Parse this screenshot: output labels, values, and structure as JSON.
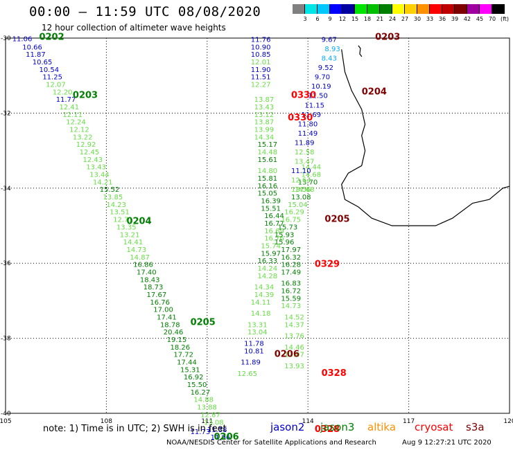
{
  "title": "00:00 – 11:59 UTC 08/08/2020",
  "subtitle": "12 hour collection of altimeter wave heights",
  "legend": {
    "colors": [
      "#808080",
      "#00e5e5",
      "#00c8ff",
      "#0000ff",
      "#0000a0",
      "#00e600",
      "#00c000",
      "#008000",
      "#ffff00",
      "#ffd000",
      "#ff9000",
      "#ff0000",
      "#c00000",
      "#800000",
      "#a000a0",
      "#ff00ff",
      "#000000"
    ],
    "labels": [
      "3",
      "6",
      "9",
      "12",
      "15",
      "18",
      "21",
      "24",
      "27",
      "30",
      "33",
      "36",
      "39",
      "42",
      "45",
      "70",
      "(ft)"
    ]
  },
  "axes": {
    "x_ticks": [
      "105",
      "108",
      "111",
      "114",
      "117",
      "120"
    ],
    "y_ticks": [
      "-30",
      "-32",
      "-34",
      "-36",
      "-38",
      "-40"
    ]
  },
  "note": "note: 1) Time is in UTC; 2) SWH is in feet",
  "satellites": [
    {
      "name": "jason2",
      "color": "#0000cc"
    },
    {
      "name": "jason3",
      "color": "#008000"
    },
    {
      "name": "altika",
      "color": "#ff9000"
    },
    {
      "name": "cryosat",
      "color": "#ff0000"
    },
    {
      "name": "s3a",
      "color": "#800000"
    }
  ],
  "credit": "NOAA/NESDIS Center for Satellite Applications and Research",
  "credit_time": "Aug  9 12:27:21 UTC 2020",
  "tracks": [
    {
      "time": "0202",
      "color": "#008000",
      "labels": [
        {
          "lon": 105.2,
          "lat": -30.08,
          "v": "11.06",
          "c": "#0000cc"
        },
        {
          "lon": 105.5,
          "lat": -30.3,
          "v": "10.66",
          "c": "#0000cc"
        },
        {
          "lon": 105.6,
          "lat": -30.5,
          "v": "11.87",
          "c": "#0000cc"
        },
        {
          "lon": 105.8,
          "lat": -30.7,
          "v": "10.65",
          "c": "#0000cc"
        },
        {
          "lon": 106.0,
          "lat": -30.9,
          "v": "10.54",
          "c": "#0000cc"
        },
        {
          "lon": 106.1,
          "lat": -31.1,
          "v": "11.25",
          "c": "#0000cc"
        },
        {
          "lon": 106.2,
          "lat": -31.3,
          "v": "12.07",
          "c": "#66dd44"
        },
        {
          "lon": 106.4,
          "lat": -31.5,
          "v": "12.20",
          "c": "#66dd44"
        },
        {
          "lon": 106.5,
          "lat": -31.7,
          "v": "11.77",
          "c": "#0000cc"
        },
        {
          "lon": 106.6,
          "lat": -31.9,
          "v": "12.41",
          "c": "#66dd44"
        },
        {
          "lon": 106.7,
          "lat": -32.1,
          "v": "12.11",
          "c": "#66dd44"
        },
        {
          "lon": 106.8,
          "lat": -32.3,
          "v": "12.24",
          "c": "#66dd44"
        },
        {
          "lon": 106.9,
          "lat": -32.5,
          "v": "12.12",
          "c": "#66dd44"
        },
        {
          "lon": 107.0,
          "lat": -32.7,
          "v": "13.22",
          "c": "#66dd44"
        },
        {
          "lon": 107.1,
          "lat": -32.9,
          "v": "12.92",
          "c": "#66dd44"
        },
        {
          "lon": 107.2,
          "lat": -33.1,
          "v": "12.45",
          "c": "#66dd44"
        },
        {
          "lon": 107.3,
          "lat": -33.3,
          "v": "12.43",
          "c": "#66dd44"
        },
        {
          "lon": 107.4,
          "lat": -33.5,
          "v": "13.43",
          "c": "#66dd44"
        },
        {
          "lon": 107.5,
          "lat": -33.7,
          "v": "13.44",
          "c": "#66dd44"
        },
        {
          "lon": 107.6,
          "lat": -33.9,
          "v": "14.21",
          "c": "#66dd44"
        },
        {
          "lon": 107.8,
          "lat": -34.1,
          "v": "15.52",
          "c": "#008000"
        },
        {
          "lon": 107.9,
          "lat": -34.3,
          "v": "13.85",
          "c": "#66dd44"
        },
        {
          "lon": 108.0,
          "lat": -34.5,
          "v": "14.23",
          "c": "#66dd44"
        },
        {
          "lon": 108.1,
          "lat": -34.7,
          "v": "13.51",
          "c": "#66dd44"
        },
        {
          "lon": 108.2,
          "lat": -34.9,
          "v": "12.71",
          "c": "#66dd44"
        },
        {
          "lon": 108.3,
          "lat": -35.1,
          "v": "13.35",
          "c": "#66dd44"
        },
        {
          "lon": 108.4,
          "lat": -35.3,
          "v": "13.21",
          "c": "#66dd44"
        },
        {
          "lon": 108.5,
          "lat": -35.5,
          "v": "14.41",
          "c": "#66dd44"
        },
        {
          "lon": 108.6,
          "lat": -35.7,
          "v": "14.73",
          "c": "#66dd44"
        },
        {
          "lon": 108.7,
          "lat": -35.9,
          "v": "14.87",
          "c": "#66dd44"
        },
        {
          "lon": 108.8,
          "lat": -36.1,
          "v": "16.86",
          "c": "#008000"
        },
        {
          "lon": 108.9,
          "lat": -36.3,
          "v": "17.40",
          "c": "#008000"
        },
        {
          "lon": 109.0,
          "lat": -36.5,
          "v": "18.43",
          "c": "#008000"
        },
        {
          "lon": 109.1,
          "lat": -36.7,
          "v": "18.73",
          "c": "#008000"
        },
        {
          "lon": 109.2,
          "lat": -36.9,
          "v": "17.67",
          "c": "#008000"
        },
        {
          "lon": 109.3,
          "lat": -37.1,
          "v": "16.76",
          "c": "#008000"
        },
        {
          "lon": 109.4,
          "lat": -37.3,
          "v": "17.00",
          "c": "#008000"
        },
        {
          "lon": 109.5,
          "lat": -37.5,
          "v": "17.41",
          "c": "#008000"
        },
        {
          "lon": 109.6,
          "lat": -37.7,
          "v": "18.78",
          "c": "#008000"
        },
        {
          "lon": 109.7,
          "lat": -37.9,
          "v": "20.46",
          "c": "#008000"
        },
        {
          "lon": 109.8,
          "lat": -38.1,
          "v": "19.15",
          "c": "#008000"
        },
        {
          "lon": 109.9,
          "lat": -38.3,
          "v": "18.26",
          "c": "#008000"
        },
        {
          "lon": 110.0,
          "lat": -38.5,
          "v": "17.72",
          "c": "#008000"
        },
        {
          "lon": 110.1,
          "lat": -38.7,
          "v": "17.44",
          "c": "#008000"
        },
        {
          "lon": 110.2,
          "lat": -38.9,
          "v": "15.31",
          "c": "#008000"
        },
        {
          "lon": 110.3,
          "lat": -39.1,
          "v": "16.92",
          "c": "#008000"
        },
        {
          "lon": 110.4,
          "lat": -39.3,
          "v": "15.50",
          "c": "#008000"
        },
        {
          "lon": 110.5,
          "lat": -39.5,
          "v": "16.27",
          "c": "#008000"
        },
        {
          "lon": 110.6,
          "lat": -39.7,
          "v": "14.88",
          "c": "#66dd44"
        },
        {
          "lon": 110.7,
          "lat": -39.9,
          "v": "13.88",
          "c": "#66dd44"
        },
        {
          "lon": 110.8,
          "lat": -40.1,
          "v": "12.87",
          "c": "#66dd44"
        },
        {
          "lon": 110.9,
          "lat": -40.3,
          "v": "13.08",
          "c": "#66dd44"
        },
        {
          "lon": 111.0,
          "lat": -40.5,
          "v": "11.38",
          "c": "#0000cc"
        },
        {
          "lon": 111.1,
          "lat": -40.7,
          "v": "11.96",
          "c": "#0000cc"
        }
      ]
    },
    {
      "time": "0330",
      "color": "#ff0000",
      "labels": [
        {
          "lon": 112.3,
          "lat": -30.1,
          "v": "11.76",
          "c": "#0000cc"
        },
        {
          "lon": 112.3,
          "lat": -30.3,
          "v": "10.90",
          "c": "#0000cc"
        },
        {
          "lon": 112.3,
          "lat": -30.5,
          "v": "10.85",
          "c": "#0000cc"
        },
        {
          "lon": 112.3,
          "lat": -30.7,
          "v": "12.01",
          "c": "#66dd44"
        },
        {
          "lon": 112.3,
          "lat": -30.9,
          "v": "11.90",
          "c": "#0000cc"
        },
        {
          "lon": 112.3,
          "lat": -31.1,
          "v": "11.51",
          "c": "#0000cc"
        },
        {
          "lon": 112.3,
          "lat": -31.3,
          "v": "12.27",
          "c": "#66dd44"
        },
        {
          "lon": 112.4,
          "lat": -31.7,
          "v": "13.87",
          "c": "#66dd44"
        },
        {
          "lon": 112.4,
          "lat": -31.9,
          "v": "13.43",
          "c": "#66dd44"
        },
        {
          "lon": 112.4,
          "lat": -32.1,
          "v": "13.12",
          "c": "#66dd44"
        },
        {
          "lon": 112.4,
          "lat": -32.3,
          "v": "13.87",
          "c": "#66dd44"
        },
        {
          "lon": 112.4,
          "lat": -32.5,
          "v": "13.99",
          "c": "#66dd44"
        },
        {
          "lon": 112.4,
          "lat": -32.7,
          "v": "14.34",
          "c": "#66dd44"
        },
        {
          "lon": 112.5,
          "lat": -32.9,
          "v": "15.17",
          "c": "#008000"
        },
        {
          "lon": 112.5,
          "lat": -33.1,
          "v": "14.48",
          "c": "#66dd44"
        },
        {
          "lon": 112.5,
          "lat": -33.3,
          "v": "15.61",
          "c": "#008000"
        },
        {
          "lon": 112.5,
          "lat": -33.6,
          "v": "14.80",
          "c": "#66dd44"
        },
        {
          "lon": 112.5,
          "lat": -33.8,
          "v": "15.81",
          "c": "#008000"
        },
        {
          "lon": 112.5,
          "lat": -34.0,
          "v": "16.16",
          "c": "#008000"
        },
        {
          "lon": 112.5,
          "lat": -34.2,
          "v": "15.05",
          "c": "#008000"
        },
        {
          "lon": 112.6,
          "lat": -34.4,
          "v": "16.39",
          "c": "#008000"
        },
        {
          "lon": 112.6,
          "lat": -34.6,
          "v": "15.51",
          "c": "#008000"
        },
        {
          "lon": 112.7,
          "lat": -34.8,
          "v": "16.44",
          "c": "#008000"
        },
        {
          "lon": 112.7,
          "lat": -35.0,
          "v": "16.77",
          "c": "#008000"
        },
        {
          "lon": 112.7,
          "lat": -35.2,
          "v": "16.69",
          "c": "#66dd44"
        },
        {
          "lon": 112.7,
          "lat": -35.4,
          "v": "16.76",
          "c": "#66dd44"
        },
        {
          "lon": 112.6,
          "lat": -35.6,
          "v": "15.74",
          "c": "#66dd44"
        },
        {
          "lon": 112.6,
          "lat": -35.8,
          "v": "15.97",
          "c": "#008000"
        },
        {
          "lon": 112.5,
          "lat": -36.0,
          "v": "16.33",
          "c": "#008000"
        },
        {
          "lon": 112.5,
          "lat": -36.2,
          "v": "14.24",
          "c": "#66dd44"
        },
        {
          "lon": 112.5,
          "lat": -36.4,
          "v": "14.28",
          "c": "#66dd44"
        },
        {
          "lon": 112.4,
          "lat": -36.7,
          "v": "14.34",
          "c": "#66dd44"
        },
        {
          "lon": 112.4,
          "lat": -36.9,
          "v": "14.39",
          "c": "#66dd44"
        },
        {
          "lon": 112.3,
          "lat": -37.1,
          "v": "14.11",
          "c": "#66dd44"
        },
        {
          "lon": 112.3,
          "lat": -37.4,
          "v": "14.18",
          "c": "#66dd44"
        },
        {
          "lon": 112.2,
          "lat": -37.7,
          "v": "13.31",
          "c": "#66dd44"
        },
        {
          "lon": 112.2,
          "lat": -37.9,
          "v": "13.04",
          "c": "#66dd44"
        },
        {
          "lon": 112.1,
          "lat": -38.2,
          "v": "11.78",
          "c": "#0000cc"
        },
        {
          "lon": 112.1,
          "lat": -38.4,
          "v": "10.81",
          "c": "#0000cc"
        },
        {
          "lon": 112.0,
          "lat": -38.7,
          "v": "11.89",
          "c": "#0000cc"
        },
        {
          "lon": 111.9,
          "lat": -39.0,
          "v": "12.65",
          "c": "#66dd44"
        }
      ]
    },
    {
      "time": "0329",
      "color": "#ff0000",
      "labels": [
        {
          "lon": 113.8,
          "lat": -33.5,
          "v": "14.44",
          "c": "#66dd44"
        },
        {
          "lon": 113.8,
          "lat": -33.7,
          "v": "14.68",
          "c": "#66dd44"
        },
        {
          "lon": 113.7,
          "lat": -33.9,
          "v": "13.70",
          "c": "#008000"
        },
        {
          "lon": 113.6,
          "lat": -34.1,
          "v": "14.68",
          "c": "#66dd44"
        },
        {
          "lon": 113.5,
          "lat": -34.3,
          "v": "13.08",
          "c": "#008000"
        },
        {
          "lon": 113.4,
          "lat": -34.5,
          "v": "15.04",
          "c": "#66dd44"
        },
        {
          "lon": 113.3,
          "lat": -34.7,
          "v": "16.29",
          "c": "#66dd44"
        },
        {
          "lon": 113.2,
          "lat": -34.9,
          "v": "16.75",
          "c": "#66dd44"
        },
        {
          "lon": 113.1,
          "lat": -35.1,
          "v": "15.73",
          "c": "#008000"
        },
        {
          "lon": 113.0,
          "lat": -35.3,
          "v": "15.93",
          "c": "#008000"
        },
        {
          "lon": 113.0,
          "lat": -35.5,
          "v": "15.96",
          "c": "#008000"
        },
        {
          "lon": 113.2,
          "lat": -35.7,
          "v": "17.97",
          "c": "#008000"
        },
        {
          "lon": 113.2,
          "lat": -35.9,
          "v": "16.32",
          "c": "#008000"
        },
        {
          "lon": 113.2,
          "lat": -36.1,
          "v": "16.28",
          "c": "#008000"
        },
        {
          "lon": 113.2,
          "lat": -36.3,
          "v": "17.49",
          "c": "#008000"
        },
        {
          "lon": 113.2,
          "lat": -36.6,
          "v": "16.83",
          "c": "#008000"
        },
        {
          "lon": 113.2,
          "lat": -36.8,
          "v": "16.72",
          "c": "#008000"
        },
        {
          "lon": 113.2,
          "lat": -37.0,
          "v": "15.59",
          "c": "#008000"
        },
        {
          "lon": 113.2,
          "lat": -37.2,
          "v": "14.73",
          "c": "#66dd44"
        },
        {
          "lon": 113.3,
          "lat": -37.5,
          "v": "14.52",
          "c": "#66dd44"
        },
        {
          "lon": 113.3,
          "lat": -37.7,
          "v": "14.37",
          "c": "#66dd44"
        },
        {
          "lon": 113.3,
          "lat": -38.0,
          "v": "13.76",
          "c": "#66dd44"
        },
        {
          "lon": 113.3,
          "lat": -38.3,
          "v": "14.46",
          "c": "#66dd44"
        },
        {
          "lon": 113.3,
          "lat": -38.5,
          "v": "13.07",
          "c": "#66dd44"
        },
        {
          "lon": 113.3,
          "lat": -38.8,
          "v": "13.93",
          "c": "#66dd44"
        }
      ]
    }
  ],
  "time_labels": [
    {
      "text": "0202",
      "lon": 106.0,
      "lat": -30.05,
      "c": "#008000"
    },
    {
      "text": "0203",
      "lon": 107.0,
      "lat": -31.6,
      "c": "#008000"
    },
    {
      "text": "0204",
      "lon": 108.6,
      "lat": -34.95,
      "c": "#008000"
    },
    {
      "text": "0205",
      "lon": 110.5,
      "lat": -37.65,
      "c": "#008000"
    },
    {
      "text": "0206",
      "lon": 111.2,
      "lat": -40.7,
      "c": "#008000"
    },
    {
      "text": "0330",
      "lon": 113.5,
      "lat": -31.6,
      "c": "#ff0000"
    },
    {
      "text": "0330",
      "lon": 113.4,
      "lat": -32.2,
      "c": "#ff0000"
    },
    {
      "text": "0329",
      "lon": 114.2,
      "lat": -36.1,
      "c": "#ff0000"
    },
    {
      "text": "0328",
      "lon": 114.4,
      "lat": -39.0,
      "c": "#ff0000"
    },
    {
      "text": "0328",
      "lon": 114.2,
      "lat": -40.5,
      "c": "#ff0000"
    },
    {
      "text": "0203",
      "lon": 116.0,
      "lat": -30.05,
      "c": "#800000"
    },
    {
      "text": "0204",
      "lon": 115.6,
      "lat": -31.5,
      "c": "#800000"
    },
    {
      "text": "0205",
      "lon": 114.5,
      "lat": -34.9,
      "c": "#800000"
    },
    {
      "text": "0206",
      "lon": 113.0,
      "lat": -38.5,
      "c": "#800000"
    }
  ],
  "track_east": [
    {
      "lon": 114.4,
      "lat": -30.1,
      "v": "9.67",
      "c": "#0000cc"
    },
    {
      "lon": 114.5,
      "lat": -30.35,
      "v": "8.93",
      "c": "#00aaff"
    },
    {
      "lon": 114.4,
      "lat": -30.6,
      "v": "8.43",
      "c": "#00aaff"
    },
    {
      "lon": 114.3,
      "lat": -30.85,
      "v": "9.52",
      "c": "#0000cc"
    },
    {
      "lon": 114.2,
      "lat": -31.1,
      "v": "9.70",
      "c": "#0000cc"
    },
    {
      "lon": 114.1,
      "lat": -31.35,
      "v": "10.19",
      "c": "#0000cc"
    },
    {
      "lon": 114.0,
      "lat": -31.6,
      "v": "11.50",
      "c": "#0000cc"
    },
    {
      "lon": 113.9,
      "lat": -31.85,
      "v": "11.15",
      "c": "#0000cc"
    },
    {
      "lon": 113.8,
      "lat": -32.1,
      "v": "11.69",
      "c": "#0000cc"
    },
    {
      "lon": 113.7,
      "lat": -32.35,
      "v": "11.80",
      "c": "#0000cc"
    },
    {
      "lon": 113.7,
      "lat": -32.6,
      "v": "11.49",
      "c": "#0000cc"
    },
    {
      "lon": 113.6,
      "lat": -32.85,
      "v": "11.89",
      "c": "#0000cc"
    },
    {
      "lon": 113.6,
      "lat": -33.1,
      "v": "12.58",
      "c": "#66dd44"
    },
    {
      "lon": 113.6,
      "lat": -33.35,
      "v": "13.47",
      "c": "#66dd44"
    },
    {
      "lon": 113.5,
      "lat": -33.6,
      "v": "11.10",
      "c": "#0000cc"
    },
    {
      "lon": 113.5,
      "lat": -33.85,
      "v": "12.64",
      "c": "#66dd44"
    },
    {
      "lon": 113.5,
      "lat": -34.1,
      "v": "13.56",
      "c": "#66dd44"
    }
  ],
  "bottom_extra": [
    {
      "lon": 110.5,
      "lat": -40.55,
      "v": "11.73",
      "c": "#0000cc"
    }
  ]
}
